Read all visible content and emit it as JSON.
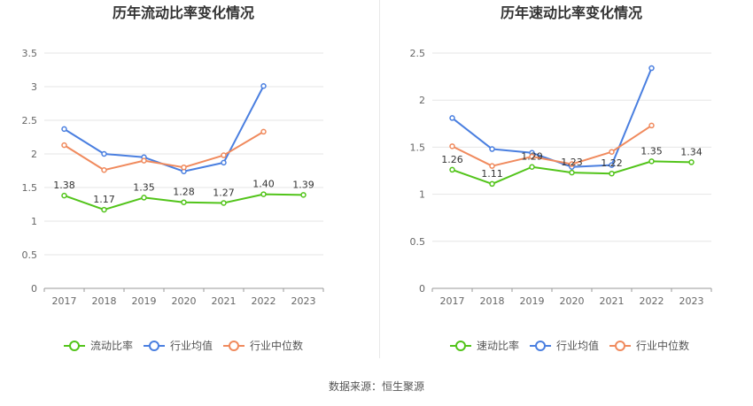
{
  "footer": {
    "source": "数据来源：恒生聚源"
  },
  "colors": {
    "company": "#52c41a",
    "industry_avg": "#4a7fe0",
    "industry_median": "#f08a5d",
    "grid": "#e6e6e6",
    "axis": "#999999",
    "text": "#666666",
    "title": "#333333"
  },
  "chart_data": [
    {
      "type": "line",
      "title": "历年流动比率变化情况",
      "categories": [
        "2017",
        "2018",
        "2019",
        "2020",
        "2021",
        "2022",
        "2023"
      ],
      "ylim": [
        0,
        3.5
      ],
      "yticks": [
        "0",
        "0.5",
        "1",
        "1.5",
        "2",
        "2.5",
        "3",
        "3.5"
      ],
      "grid": true,
      "legend": "bottom",
      "series": [
        {
          "name": "流动比率",
          "key": "company",
          "values": [
            1.38,
            1.17,
            1.35,
            1.28,
            1.27,
            1.4,
            1.39
          ],
          "labels": [
            "1.38",
            "1.17",
            "1.35",
            "1.28",
            "1.27",
            "1.40",
            "1.39"
          ]
        },
        {
          "name": "行业均值",
          "key": "industry_avg",
          "values": [
            2.37,
            2.0,
            1.95,
            1.74,
            1.87,
            3.01,
            null
          ]
        },
        {
          "name": "行业中位数",
          "key": "industry_median",
          "values": [
            2.13,
            1.76,
            1.9,
            1.8,
            1.98,
            2.33,
            null
          ]
        }
      ]
    },
    {
      "type": "line",
      "title": "历年速动比率变化情况",
      "categories": [
        "2017",
        "2018",
        "2019",
        "2020",
        "2021",
        "2022",
        "2023"
      ],
      "ylim": [
        0,
        2.5
      ],
      "yticks": [
        "0",
        "0.5",
        "1",
        "1.5",
        "2",
        "2.5"
      ],
      "grid": true,
      "legend": "bottom",
      "series": [
        {
          "name": "速动比率",
          "key": "company",
          "values": [
            1.26,
            1.11,
            1.29,
            1.23,
            1.22,
            1.35,
            1.34
          ],
          "labels": [
            "1.26",
            "1.11",
            "1.29",
            "1.23",
            "1.22",
            "1.35",
            "1.34"
          ]
        },
        {
          "name": "行业均值",
          "key": "industry_avg",
          "values": [
            1.81,
            1.48,
            1.44,
            1.29,
            1.31,
            2.34,
            null
          ]
        },
        {
          "name": "行业中位数",
          "key": "industry_median",
          "values": [
            1.51,
            1.3,
            1.4,
            1.32,
            1.45,
            1.73,
            null
          ]
        }
      ]
    }
  ]
}
